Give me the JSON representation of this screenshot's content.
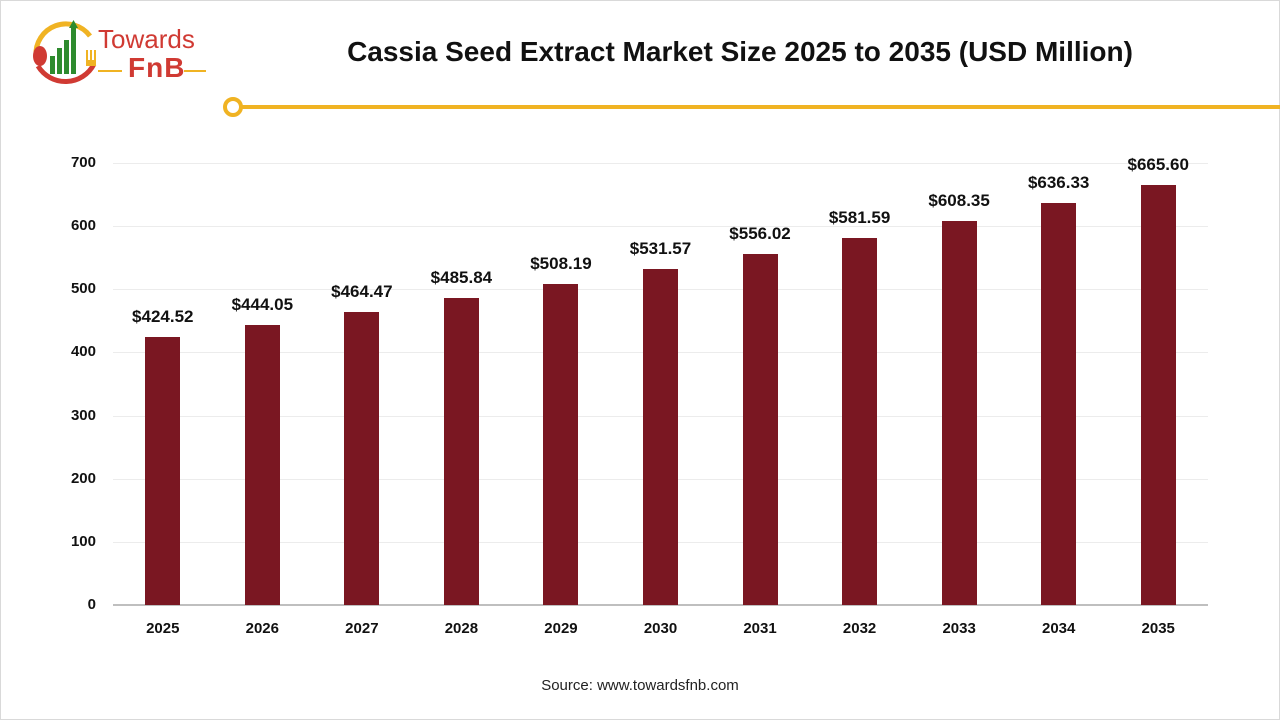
{
  "brand": {
    "name_line1": "Towards",
    "name_line2": "FnB"
  },
  "colors": {
    "bar": "#7a1722",
    "accent": "#f0b323",
    "brand_red": "#d03a33",
    "brand_green": "#2e8b2e"
  },
  "header": {
    "title": "Cassia Seed Extract Market Size 2025 to 2035 (USD Million)"
  },
  "footer": {
    "source": "Source: www.towardsfnb.com"
  },
  "chart_data": {
    "type": "bar",
    "title": "Cassia Seed Extract Market Size 2025 to 2035 (USD Million)",
    "xlabel": "",
    "ylabel": "",
    "ylim": [
      0,
      700
    ],
    "yticks": [
      0,
      100,
      200,
      300,
      400,
      500,
      600,
      700
    ],
    "grid": true,
    "legend": null,
    "categories": [
      "2025",
      "2026",
      "2027",
      "2028",
      "2029",
      "2030",
      "2031",
      "2032",
      "2033",
      "2034",
      "2035"
    ],
    "values": [
      424.52,
      444.05,
      464.47,
      485.84,
      508.19,
      531.57,
      556.02,
      581.59,
      608.35,
      636.33,
      665.6
    ],
    "labels": [
      "$424.52",
      "$444.05",
      "$464.47",
      "$485.84",
      "$508.19",
      "$531.57",
      "$556.02",
      "$581.59",
      "$608.35",
      "$636.33",
      "$665.60"
    ]
  }
}
